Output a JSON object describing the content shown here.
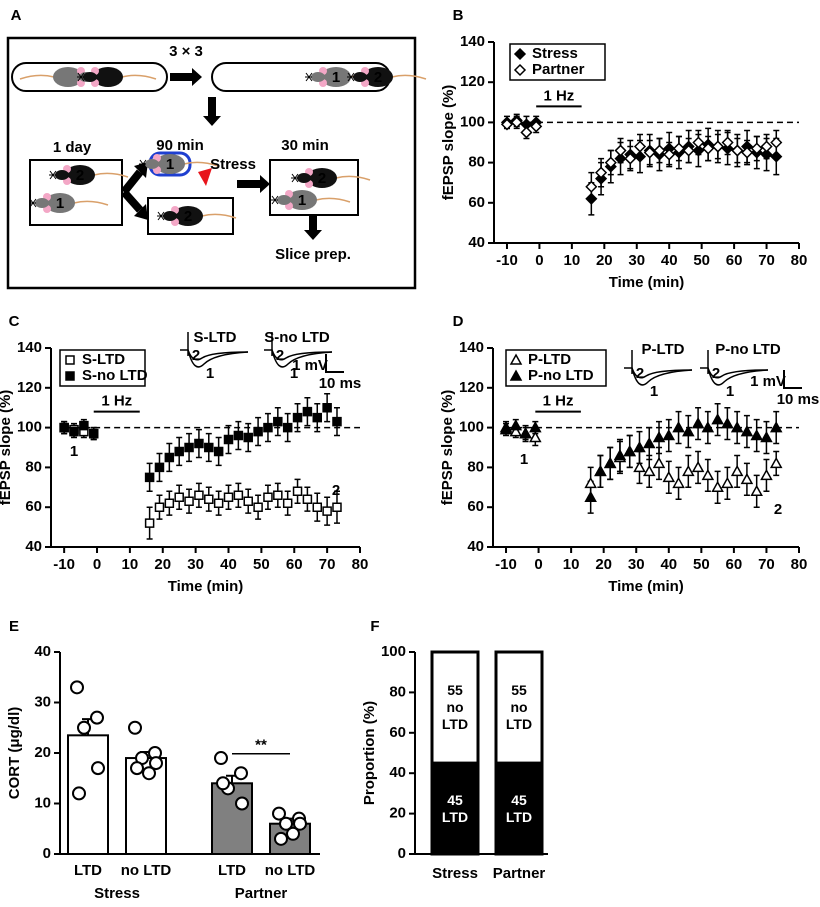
{
  "panel_labels": [
    "A",
    "B",
    "C",
    "D",
    "E",
    "F"
  ],
  "diagram": {
    "repeat": "3 × 3",
    "day": "1 day",
    "t90": "90 min",
    "stress": "Stress",
    "t30": "30 min",
    "slice": "Slice prep.",
    "mouse_1": "1",
    "mouse_2": "2"
  },
  "chart_data": [
    {
      "type": "scatter",
      "xlabel": "Time (min)",
      "ylabel": "fEPSP slope (%)",
      "xlim": [
        -14,
        80
      ],
      "xticks": [
        -10,
        0,
        10,
        20,
        30,
        40,
        50,
        60,
        70,
        80
      ],
      "ylim": [
        40,
        140
      ],
      "yticks": [
        40,
        60,
        80,
        100,
        120,
        140
      ],
      "reference_line": 100,
      "stimulus": {
        "label": "1 Hz",
        "from": -1,
        "to": 13
      },
      "legend": "upper left",
      "x": [
        -10,
        -7,
        -4,
        -1,
        16,
        19,
        22,
        25,
        28,
        31,
        34,
        37,
        40,
        43,
        46,
        49,
        52,
        55,
        58,
        61,
        64,
        67,
        70,
        73
      ],
      "series": [
        {
          "name": "Stress",
          "marker": "diamond",
          "color": "#000000",
          "values": [
            100,
            101,
            99,
            100,
            62,
            72,
            78,
            82,
            84,
            83,
            86,
            84,
            87,
            85,
            88,
            86,
            89,
            88,
            87,
            86,
            88,
            85,
            84,
            83
          ],
          "errors": [
            3,
            3,
            4,
            3,
            8,
            8,
            8,
            8,
            7,
            8,
            8,
            8,
            8,
            8,
            8,
            8,
            8,
            8,
            8,
            8,
            8,
            8,
            8,
            9
          ]
        },
        {
          "name": "Partner",
          "marker": "diamond",
          "color": "#ffffff",
          "values": [
            99,
            100,
            95,
            98,
            68,
            75,
            80,
            86,
            82,
            88,
            85,
            86,
            84,
            87,
            86,
            90,
            87,
            88,
            90,
            86,
            85,
            87,
            88,
            90
          ],
          "errors": [
            2,
            3,
            3,
            3,
            7,
            7,
            6,
            6,
            6,
            6,
            6,
            6,
            6,
            6,
            6,
            6,
            6,
            6,
            6,
            6,
            6,
            6,
            6,
            6
          ]
        }
      ]
    },
    {
      "type": "scatter",
      "xlabel": "Time (min)",
      "ylabel": "fEPSP slope (%)",
      "xlim": [
        -14,
        80
      ],
      "xticks": [
        -10,
        0,
        10,
        20,
        30,
        40,
        50,
        60,
        70,
        80
      ],
      "ylim": [
        40,
        140
      ],
      "yticks": [
        40,
        60,
        80,
        100,
        120,
        140
      ],
      "reference_line": 100,
      "stimulus": {
        "label": "1 Hz",
        "from": -1,
        "to": 13
      },
      "legend": "upper left",
      "trace_labels": [
        "S-LTD",
        "S-no LTD"
      ],
      "scale_bar": {
        "amplitude": "1 mV",
        "time": "10 ms"
      },
      "annotations": [
        "1",
        "2"
      ],
      "x": [
        -10,
        -7,
        -4,
        -1,
        16,
        19,
        22,
        25,
        28,
        31,
        34,
        37,
        40,
        43,
        46,
        49,
        52,
        55,
        58,
        61,
        64,
        67,
        70,
        73
      ],
      "series": [
        {
          "name": "S-LTD",
          "marker": "square",
          "color": "#ffffff",
          "values": [
            100,
            99,
            98,
            97,
            52,
            60,
            62,
            65,
            63,
            66,
            64,
            62,
            65,
            66,
            63,
            60,
            65,
            66,
            62,
            68,
            64,
            60,
            58,
            60
          ],
          "errors": [
            3,
            3,
            3,
            3,
            8,
            6,
            6,
            6,
            6,
            6,
            6,
            6,
            6,
            6,
            6,
            6,
            6,
            6,
            6,
            6,
            6,
            7,
            7,
            8
          ]
        },
        {
          "name": "S-no LTD",
          "marker": "square",
          "color": "#000000",
          "values": [
            100,
            98,
            101,
            97,
            75,
            80,
            85,
            88,
            90,
            92,
            90,
            88,
            94,
            96,
            95,
            98,
            100,
            103,
            100,
            105,
            108,
            105,
            110,
            103
          ],
          "errors": [
            3,
            3,
            3,
            3,
            7,
            7,
            7,
            7,
            7,
            7,
            7,
            7,
            7,
            7,
            7,
            7,
            7,
            7,
            7,
            7,
            7,
            7,
            7,
            7
          ]
        }
      ]
    },
    {
      "type": "scatter",
      "xlabel": "Time (min)",
      "ylabel": "fEPSP slope (%)",
      "xlim": [
        -14,
        80
      ],
      "xticks": [
        -10,
        0,
        10,
        20,
        30,
        40,
        50,
        60,
        70,
        80
      ],
      "ylim": [
        40,
        140
      ],
      "yticks": [
        40,
        60,
        80,
        100,
        120,
        140
      ],
      "reference_line": 100,
      "stimulus": {
        "label": "1 Hz",
        "from": -1,
        "to": 13
      },
      "legend": "upper left",
      "trace_labels": [
        "P-LTD",
        "P-no LTD"
      ],
      "scale_bar": {
        "amplitude": "1 mV",
        "time": "10 ms"
      },
      "annotations": [
        "1",
        "2"
      ],
      "x": [
        -10,
        -7,
        -4,
        -1,
        16,
        19,
        22,
        25,
        28,
        31,
        34,
        37,
        40,
        43,
        46,
        49,
        52,
        55,
        58,
        61,
        64,
        67,
        70,
        73
      ],
      "series": [
        {
          "name": "P-LTD",
          "marker": "triangle",
          "color": "#ffffff",
          "values": [
            100,
            98,
            97,
            95,
            72,
            78,
            82,
            85,
            88,
            80,
            78,
            82,
            75,
            72,
            78,
            80,
            76,
            70,
            72,
            78,
            74,
            68,
            76,
            82
          ],
          "errors": [
            3,
            3,
            4,
            4,
            8,
            8,
            8,
            8,
            8,
            8,
            8,
            8,
            8,
            8,
            8,
            8,
            8,
            8,
            8,
            8,
            8,
            8,
            8,
            6
          ]
        },
        {
          "name": "P-no LTD",
          "marker": "triangle",
          "color": "#000000",
          "values": [
            99,
            101,
            97,
            100,
            65,
            78,
            82,
            86,
            88,
            90,
            92,
            95,
            96,
            100,
            98,
            102,
            100,
            104,
            102,
            100,
            98,
            96,
            95,
            100
          ],
          "errors": [
            3,
            3,
            3,
            3,
            8,
            8,
            8,
            8,
            8,
            8,
            8,
            8,
            8,
            8,
            8,
            8,
            8,
            8,
            8,
            8,
            8,
            8,
            8,
            8
          ]
        }
      ]
    },
    {
      "type": "bar",
      "ylabel": "CORT (μg/dl)",
      "ylim": [
        0,
        40
      ],
      "yticks": [
        0,
        10,
        20,
        30,
        40
      ],
      "categories": [
        "LTD",
        "no LTD",
        "LTD",
        "no LTD"
      ],
      "groups": [
        "Stress",
        "Partner"
      ],
      "values": [
        23.5,
        19,
        14,
        6
      ],
      "errors": [
        3.2,
        1.2,
        1.5,
        1
      ],
      "colors": [
        "#ffffff",
        "#ffffff",
        "#808080",
        "#808080"
      ],
      "points": [
        [
          33,
          27,
          25,
          17,
          12
        ],
        [
          25,
          20,
          19,
          18,
          17,
          16
        ],
        [
          19,
          16,
          13,
          10,
          14
        ],
        [
          8,
          7,
          6,
          6,
          3,
          4
        ]
      ],
      "significance": "**"
    },
    {
      "type": "stacked_bar",
      "ylabel": "Proportion (%)",
      "ylim": [
        0,
        100
      ],
      "yticks": [
        0,
        20,
        40,
        60,
        80,
        100
      ],
      "categories": [
        "Stress",
        "Partner"
      ],
      "series": [
        {
          "name": "LTD",
          "color": "#000000",
          "values": [
            45,
            45
          ]
        },
        {
          "name": "no LTD",
          "color": "#ffffff",
          "values": [
            55,
            55
          ]
        }
      ]
    }
  ]
}
